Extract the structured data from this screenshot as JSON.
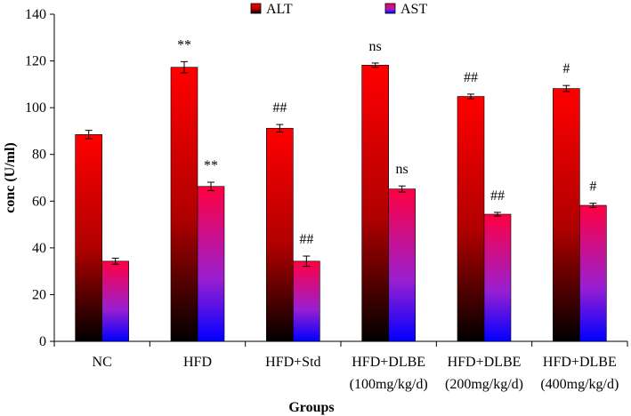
{
  "chart_data": {
    "type": "bar",
    "title": "",
    "xlabel": "Groups",
    "ylabel": "conc (U/ml)",
    "ylim": [
      0,
      140
    ],
    "yticks": [
      0,
      20,
      40,
      60,
      80,
      100,
      120,
      140
    ],
    "categories": [
      [
        "NC"
      ],
      [
        "HFD"
      ],
      [
        "HFD+Std"
      ],
      [
        "HFD+DLBE",
        "(100mg/kg/d)"
      ],
      [
        "HFD+DLBE",
        "(200mg/kg/d)"
      ],
      [
        "HFD+DLBE",
        "(400mg/kg/d)"
      ]
    ],
    "legend_position": "top-center",
    "series": [
      {
        "name": "ALT",
        "key": "alt",
        "values": [
          88.5,
          117.3,
          91.2,
          118.2,
          104.8,
          108.2
        ],
        "errors": [
          1.8,
          2.4,
          1.6,
          0.9,
          1.0,
          1.3
        ],
        "annotations": [
          "",
          "**",
          "##",
          "ns",
          "##",
          "#"
        ]
      },
      {
        "name": "AST",
        "key": "ast",
        "values": [
          34.3,
          66.3,
          34.3,
          65.2,
          54.4,
          58.2
        ],
        "errors": [
          1.3,
          1.8,
          2.2,
          1.3,
          0.8,
          0.9
        ],
        "annotations": [
          "",
          "**",
          "##",
          "ns",
          "##",
          "#"
        ]
      }
    ]
  }
}
